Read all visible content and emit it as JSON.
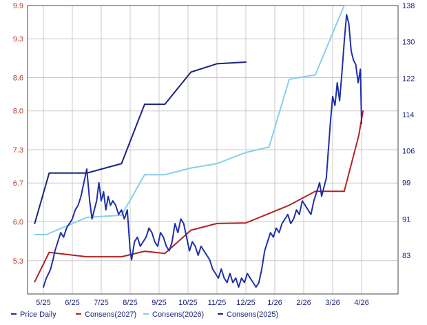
{
  "chart_data": {
    "type": "line",
    "x_ticks": [
      "5/25",
      "6/25",
      "7/25",
      "8/25",
      "9/25",
      "10/25",
      "11/25",
      "12/25",
      "1/26",
      "2/26",
      "3/26",
      "4/26"
    ],
    "left_axis": {
      "ticks": [
        "9.9",
        "9.3",
        "8.6",
        "8.0",
        "7.3",
        "6.7",
        "6.0",
        "5.3"
      ],
      "ylim": [
        4.7,
        9.9
      ],
      "tick_color": "#c0392b"
    },
    "right_axis": {
      "ticks": [
        "138",
        "130",
        "122",
        "114",
        "106",
        "99",
        "91",
        "83"
      ],
      "ylim": [
        74.5,
        138
      ],
      "tick_color": "#1a237e"
    },
    "grid": true,
    "legend_position": "bottom",
    "series": [
      {
        "name": "Price Daily",
        "axis": "right",
        "color": "#1f2fa8",
        "x": [
          0.0,
          0.1,
          0.18,
          0.25,
          0.33,
          0.4,
          0.5,
          0.6,
          0.7,
          0.8,
          0.9,
          1.0,
          1.1,
          1.2,
          1.3,
          1.4,
          1.5,
          1.6,
          1.68,
          1.76,
          1.84,
          1.92,
          2.0,
          2.08,
          2.16,
          2.24,
          2.32,
          2.4,
          2.5,
          2.6,
          2.7,
          2.8,
          2.9,
          3.0,
          3.05,
          3.15,
          3.25,
          3.35,
          3.45,
          3.55,
          3.65,
          3.75,
          3.85,
          3.95,
          4.05,
          4.15,
          4.25,
          4.35,
          4.45,
          4.55,
          4.65,
          4.75,
          4.85,
          4.95,
          5.05,
          5.15,
          5.25,
          5.35,
          5.45,
          5.55,
          5.65,
          5.75,
          5.85,
          5.95,
          6.05,
          6.15,
          6.25,
          6.35,
          6.45,
          6.55,
          6.65,
          6.75,
          6.85,
          6.95,
          7.05,
          7.15,
          7.25,
          7.35,
          7.45,
          7.55,
          7.65,
          7.75,
          7.85,
          7.95,
          8.05,
          8.15,
          8.25,
          8.35,
          8.45,
          8.55,
          8.65,
          8.75,
          8.85,
          8.95,
          9.05,
          9.15,
          9.25,
          9.35,
          9.45,
          9.55,
          9.62,
          9.7,
          9.78,
          9.85,
          9.92,
          10.0,
          10.08,
          10.16,
          10.24,
          10.32,
          10.4,
          10.48,
          10.56,
          10.64,
          10.72,
          10.8,
          10.88,
          10.96,
          11.0
        ],
        "values": [
          76,
          78,
          79,
          80,
          82,
          84,
          86,
          88,
          87,
          89,
          90,
          91,
          93,
          94,
          96,
          99,
          102,
          95,
          91,
          93,
          95,
          99,
          95,
          97,
          93,
          96,
          94,
          95,
          94,
          92,
          93,
          91,
          93,
          84,
          82,
          86,
          87,
          85,
          86,
          87,
          89,
          88,
          86,
          85,
          88,
          87,
          85,
          84,
          86,
          90,
          88,
          91,
          90,
          87,
          84,
          86,
          85,
          83,
          85,
          84,
          83,
          82,
          80,
          79,
          78,
          80,
          78,
          77,
          79,
          77,
          78,
          76,
          78,
          77,
          79,
          78,
          77,
          76,
          77,
          80,
          84,
          86,
          88,
          87,
          89,
          88,
          90,
          91,
          92,
          90,
          91,
          93,
          92,
          95,
          94,
          93,
          92,
          95,
          97,
          99,
          96,
          98,
          100,
          106,
          112,
          118,
          116,
          121,
          117,
          123,
          130,
          136,
          134,
          128,
          126,
          125,
          121,
          124,
          112
        ]
      },
      {
        "name": "Consens(2027)",
        "axis": "left",
        "color": "#b22222",
        "x": [
          -0.3,
          0.2,
          1.5,
          2.7,
          3.5,
          4.2,
          5.1,
          6.0,
          7.0,
          7.8,
          8.5,
          9.4,
          10.4,
          10.9,
          11.05
        ],
        "values": [
          4.92,
          5.45,
          5.37,
          5.37,
          5.47,
          5.43,
          5.85,
          5.97,
          5.98,
          6.15,
          6.3,
          6.55,
          6.55,
          7.55,
          8.0
        ]
      },
      {
        "name": "Consens(2026)",
        "axis": "left",
        "color": "#87ceeb",
        "x": [
          -0.3,
          0.1,
          1.5,
          2.7,
          3.5,
          4.2,
          5.1,
          6.0,
          7.0,
          7.8,
          8.5,
          9.4,
          10.4,
          10.9
        ],
        "values": [
          5.77,
          5.77,
          6.08,
          6.12,
          6.85,
          6.85,
          6.97,
          7.05,
          7.25,
          7.35,
          8.57,
          8.65,
          9.9,
          9.9
        ]
      },
      {
        "name": "Consens(2025)",
        "axis": "left",
        "color": "#1a237e",
        "x": [
          -0.3,
          0.2,
          1.5,
          2.7,
          3.5,
          4.2,
          5.1,
          6.0,
          7.0
        ],
        "values": [
          5.97,
          6.88,
          6.88,
          7.05,
          8.12,
          8.12,
          8.7,
          8.85,
          8.88
        ]
      }
    ]
  },
  "legend": [
    {
      "label": "Price Daily",
      "color": "#1f2fa8"
    },
    {
      "label": "Consens(2027)",
      "color": "#b22222"
    },
    {
      "label": "Consens(2026)",
      "color": "#87ceeb"
    },
    {
      "label": "Consens(2025)",
      "color": "#1a237e"
    }
  ]
}
